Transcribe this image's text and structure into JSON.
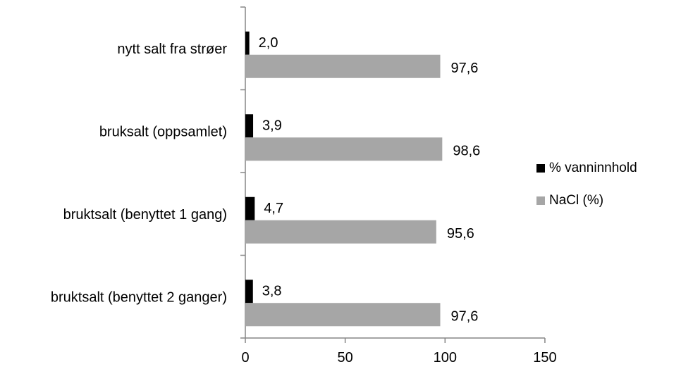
{
  "chart_data": {
    "type": "bar",
    "orientation": "horizontal",
    "categories": [
      "nytt salt fra strøer",
      "bruksalt (oppsamlet)",
      "bruktsalt (benyttet 1 gang)",
      "bruktsalt (benyttet 2 ganger)"
    ],
    "series": [
      {
        "name": "% vanninnhold",
        "color": "#000000",
        "values": [
          2.0,
          3.9,
          4.7,
          3.8
        ],
        "labels": [
          "2,0",
          "3,9",
          "4,7",
          "3,8"
        ]
      },
      {
        "name": "NaCl (%)",
        "color": "#a6a6a6",
        "values": [
          97.6,
          98.6,
          95.6,
          97.6
        ],
        "labels": [
          "97,6",
          "98,6",
          "95,6",
          "97,6"
        ]
      }
    ],
    "xlim": [
      0,
      150
    ],
    "xticks": [
      0,
      50,
      100,
      150
    ],
    "xtick_labels": [
      "0",
      "50",
      "100",
      "150"
    ],
    "grid": false,
    "legend_position": "right"
  }
}
